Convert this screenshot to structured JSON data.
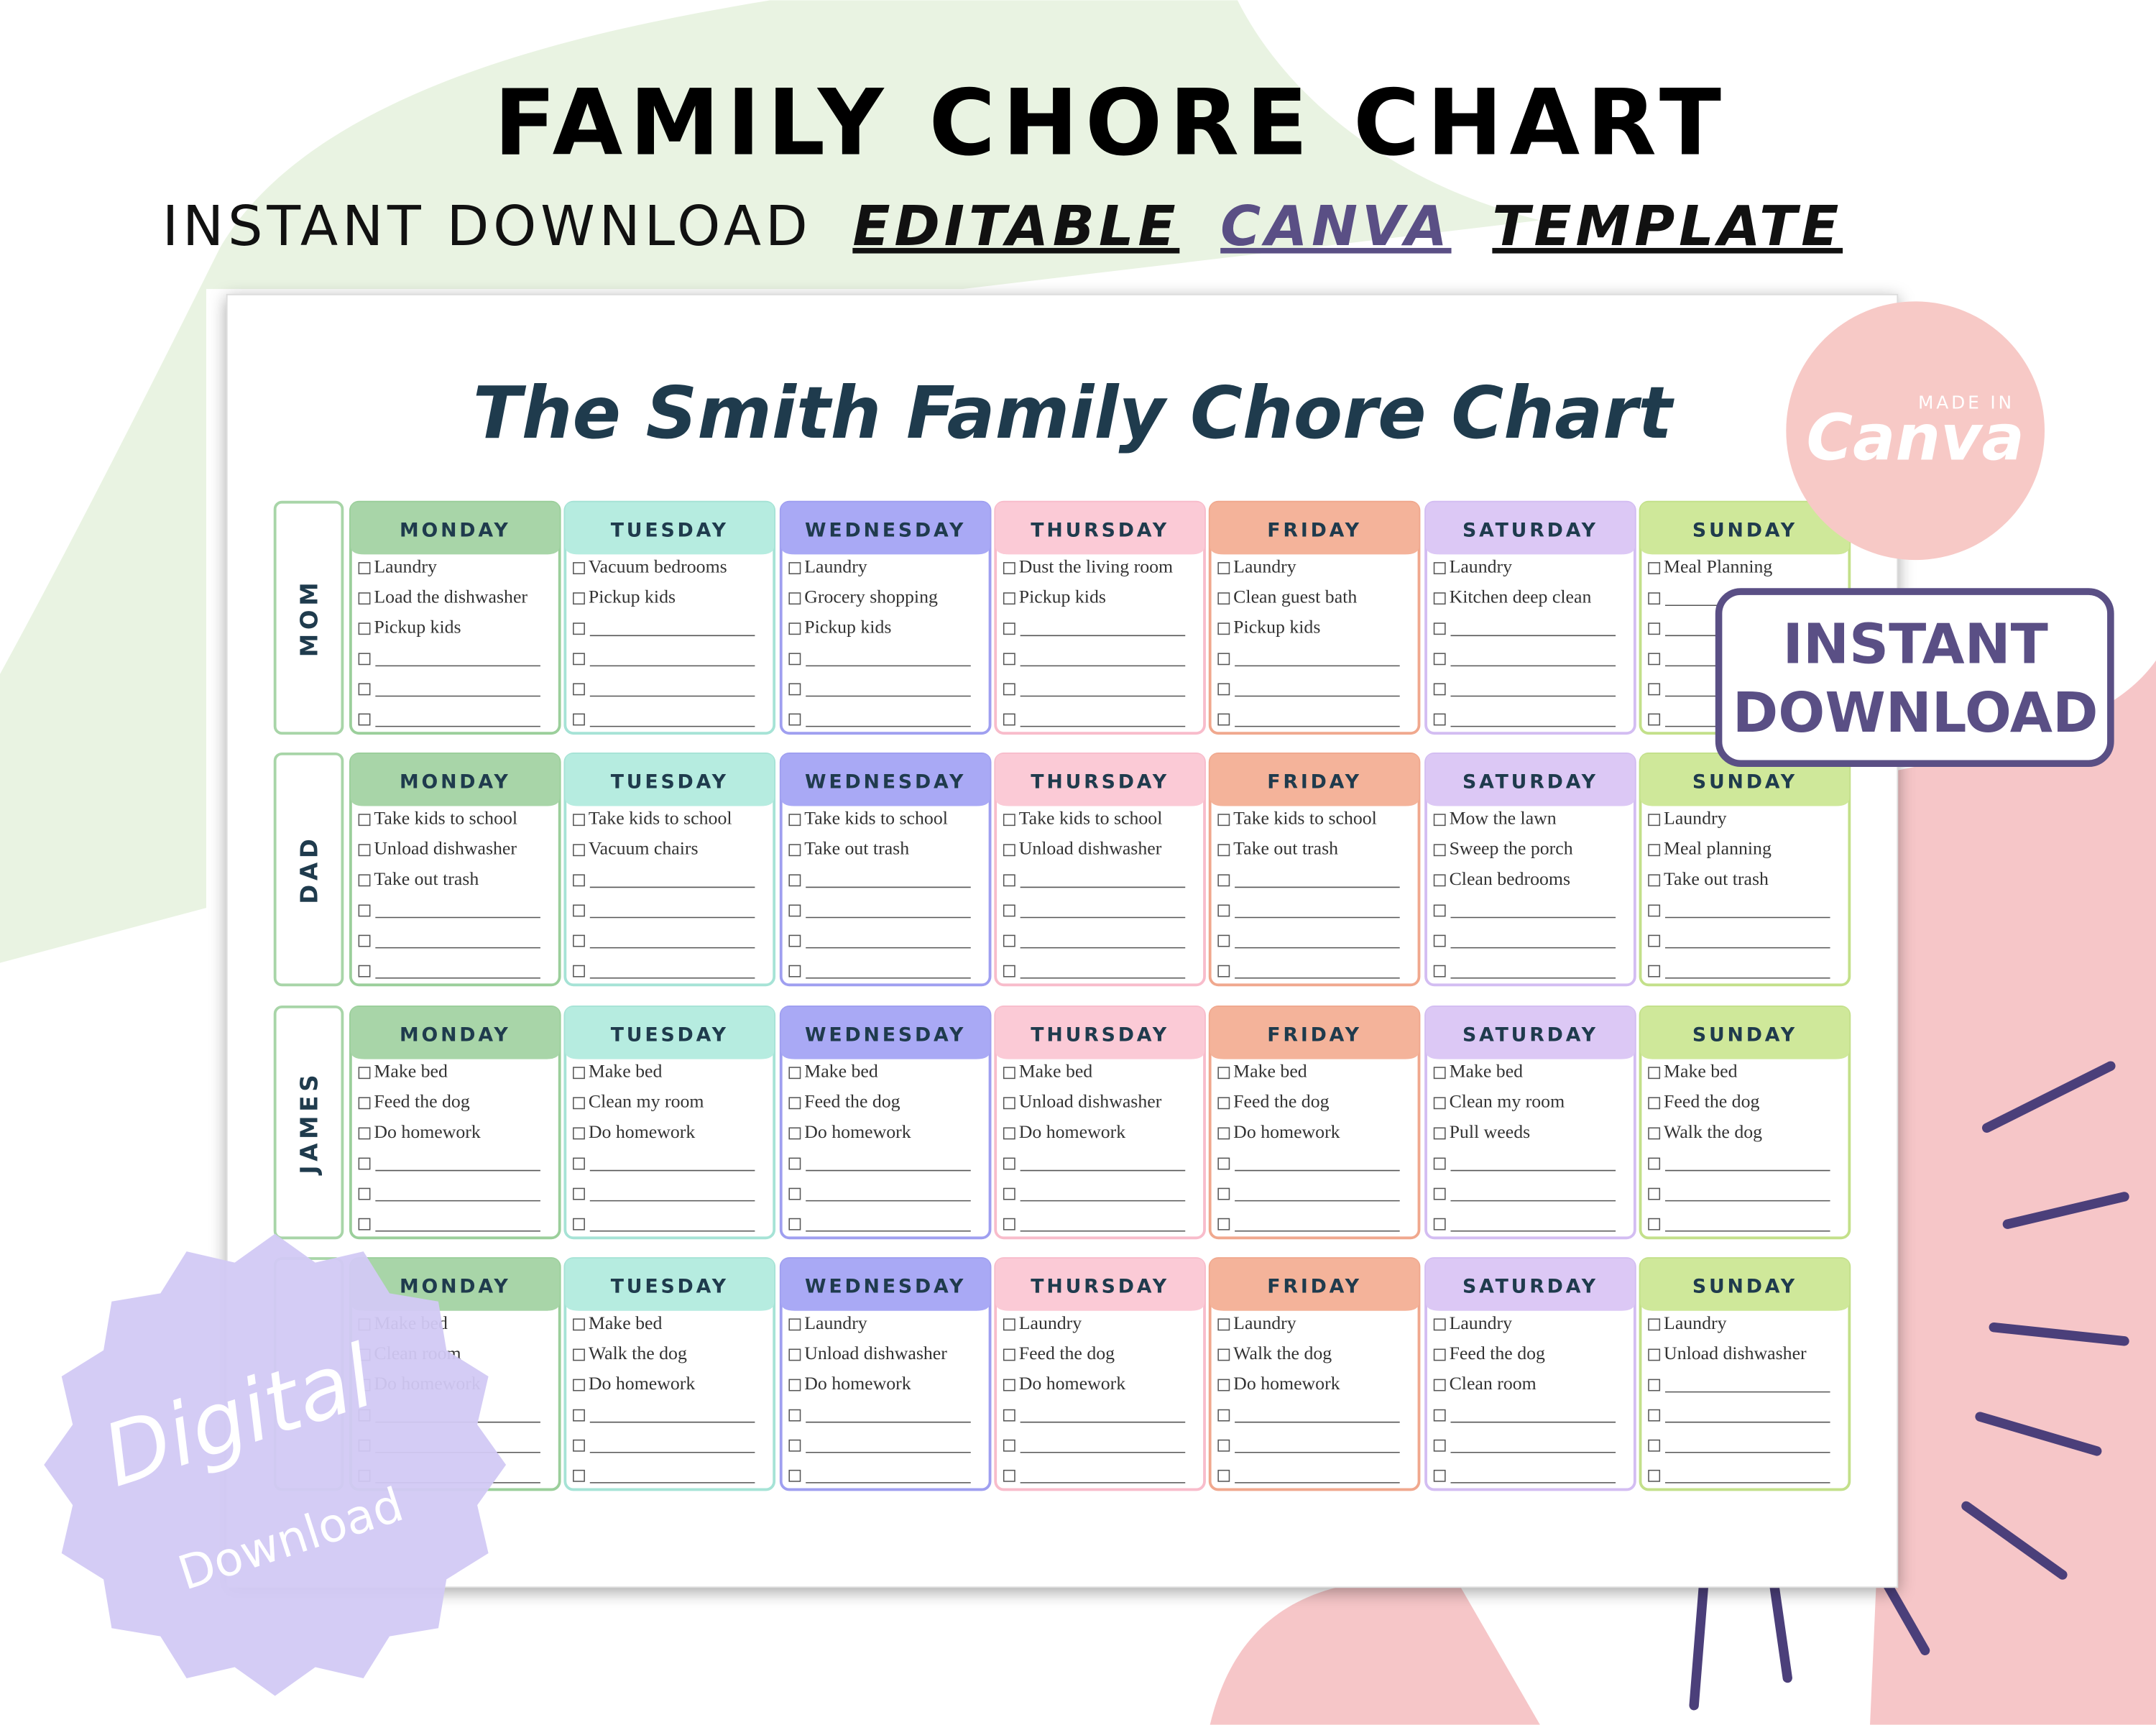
{
  "header": {
    "title": "FAMILY CHORE CHART",
    "subtitle": {
      "plain": "INSTANT DOWNLOAD",
      "editable": "EDITABLE",
      "canva": "CANVA",
      "template": "TEMPLATE"
    }
  },
  "chart": {
    "title": "The Smith Family Chore Chart",
    "days": [
      "MONDAY",
      "TUESDAY",
      "WEDNESDAY",
      "THURSDAY",
      "FRIDAY",
      "SATURDAY",
      "SUNDAY"
    ],
    "members": [
      {
        "name": "MOM",
        "tasks": [
          [
            "Laundry",
            "Load the dishwasher",
            "Pickup kids"
          ],
          [
            "Vacuum bedrooms",
            "Pickup kids"
          ],
          [
            "Laundry",
            "Grocery shopping",
            "Pickup kids"
          ],
          [
            "Dust the living room",
            "Pickup kids"
          ],
          [
            "Laundry",
            "Clean guest bath",
            "Pickup kids"
          ],
          [
            "Laundry",
            "Kitchen deep clean"
          ],
          [
            "Meal Planning"
          ]
        ]
      },
      {
        "name": "DAD",
        "tasks": [
          [
            "Take kids to school",
            "Unload dishwasher",
            "Take out trash"
          ],
          [
            "Take kids to school",
            "Vacuum chairs"
          ],
          [
            "Take kids to school",
            "Take out trash"
          ],
          [
            "Take kids to school",
            "Unload dishwasher"
          ],
          [
            "Take kids to school",
            "Take out trash"
          ],
          [
            "Mow the lawn",
            "Sweep the porch",
            "Clean bedrooms"
          ],
          [
            "Laundry",
            "Meal planning",
            "Take out trash"
          ]
        ]
      },
      {
        "name": "JAMES",
        "tasks": [
          [
            "Make bed",
            "Feed the dog",
            "Do homework"
          ],
          [
            "Make bed",
            "Clean my room",
            "Do homework"
          ],
          [
            "Make bed",
            "Feed the dog",
            "Do homework"
          ],
          [
            "Make bed",
            "Unload dishwasher",
            "Do homework"
          ],
          [
            "Make bed",
            "Feed the dog",
            "Do homework"
          ],
          [
            "Make bed",
            "Clean my room",
            "Pull weeds"
          ],
          [
            "Make bed",
            "Feed the dog",
            "Walk the dog"
          ]
        ]
      },
      {
        "tasks": [
          [
            "Make bed",
            "Clean room",
            "Do homework"
          ],
          [
            "Make bed",
            "Walk the dog",
            "Do homework"
          ],
          [
            "Laundry",
            "Unload dishwasher",
            "Do homework"
          ],
          [
            "Laundry",
            "Feed the dog",
            "Do homework"
          ],
          [
            "Laundry",
            "Walk the dog",
            "Do homework"
          ],
          [
            "Laundry",
            "Feed the dog",
            "Clean room"
          ],
          [
            "Laundry",
            "Unload dishwasher"
          ]
        ]
      }
    ]
  },
  "badges": {
    "canva": {
      "top": "MADE IN",
      "brand": "Canva"
    },
    "instant": {
      "line1": "INSTANT",
      "line2": "DOWNLOAD"
    },
    "digital": {
      "line1": "Digital",
      "line2": "Download"
    }
  }
}
